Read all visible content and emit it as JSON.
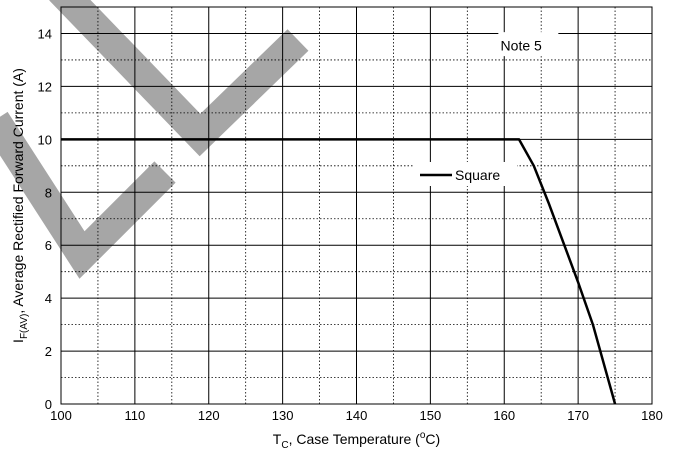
{
  "chart_data": {
    "type": "line",
    "xlabel_main": "T",
    "xlabel_sub": "C",
    "xlabel_rest": ", Case Temperature (",
    "xlabel_deg": "o",
    "xlabel_end": "C)",
    "ylabel_main": "I",
    "ylabel_sub": "F(AV)",
    "ylabel_rest": ", Average Rectified Forward Current (A)",
    "xlim": [
      100,
      180
    ],
    "ylim": [
      0,
      15
    ],
    "xticks": [
      100,
      110,
      120,
      130,
      140,
      150,
      160,
      170,
      180
    ],
    "yticks": [
      0,
      2,
      4,
      6,
      8,
      10,
      12,
      14
    ],
    "grid": true,
    "annotation": "Note 5",
    "legend_position": "center-right",
    "series": [
      {
        "name": "Square",
        "x": [
          100,
          162,
          164,
          166,
          168,
          170,
          172,
          174,
          175
        ],
        "y": [
          10,
          10,
          9,
          7.6,
          6.1,
          4.6,
          3,
          1,
          0
        ]
      }
    ]
  },
  "colors": {
    "line": "#000000",
    "grid": "#000000",
    "watermark": "#a6a6a6"
  }
}
